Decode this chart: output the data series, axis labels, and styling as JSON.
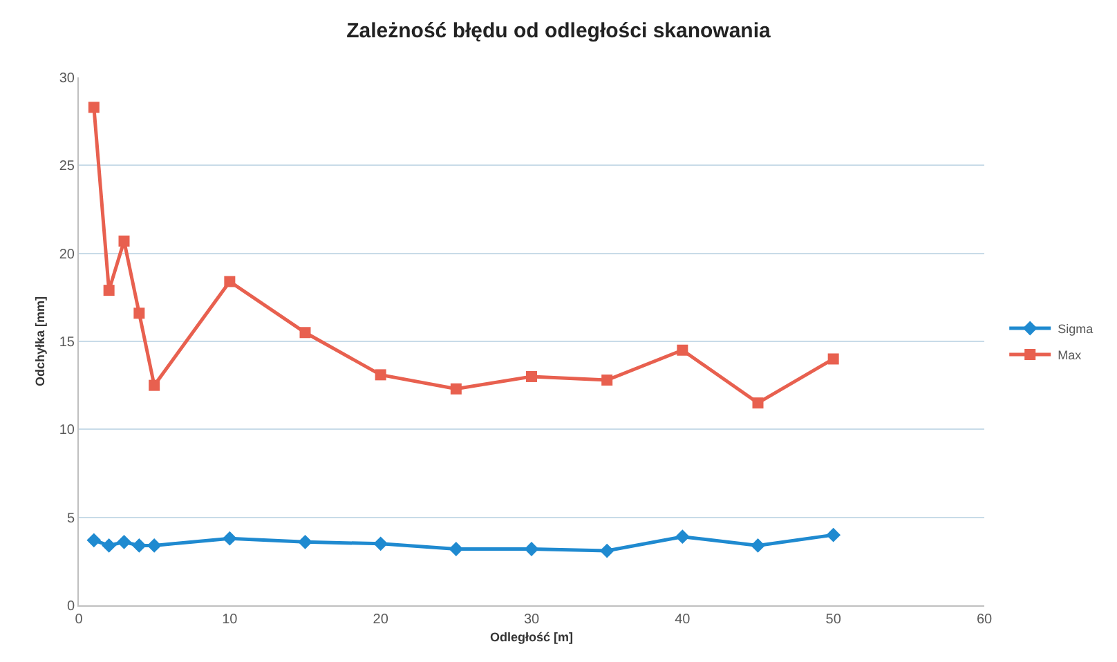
{
  "chart_data": {
    "type": "line",
    "title": "Zależność błędu od odległości skanowania",
    "xlabel": "Odległość [m]",
    "ylabel": "Odchyłka [mm]",
    "x": [
      1,
      2,
      3,
      4,
      5,
      10,
      15,
      20,
      25,
      30,
      35,
      40,
      45,
      50
    ],
    "series": [
      {
        "name": "Sigma",
        "color": "#1f8ad0",
        "marker": "diamond",
        "values": [
          3.7,
          3.4,
          3.6,
          3.4,
          3.4,
          3.8,
          3.6,
          3.5,
          3.2,
          3.2,
          3.1,
          3.9,
          3.4,
          4.0
        ]
      },
      {
        "name": "Max",
        "color": "#e8604f",
        "marker": "square",
        "values": [
          28.3,
          17.9,
          20.7,
          16.6,
          12.5,
          18.4,
          15.5,
          13.1,
          12.3,
          13.0,
          12.8,
          14.5,
          11.5,
          14.0
        ]
      }
    ],
    "xlim": [
      0,
      60
    ],
    "xticks": [
      0,
      10,
      20,
      30,
      40,
      50,
      60
    ],
    "ylim": [
      0,
      30
    ],
    "yticks": [
      0,
      5,
      10,
      15,
      20,
      25,
      30
    ],
    "grid": "y",
    "legend": "right"
  }
}
